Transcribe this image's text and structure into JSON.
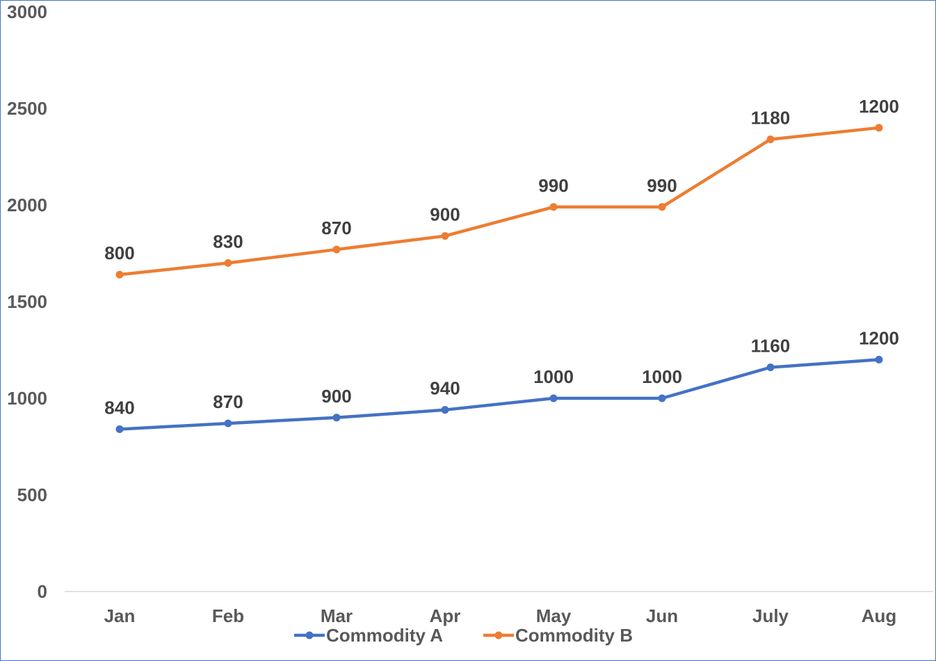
{
  "chart_data": {
    "type": "line",
    "stacked": true,
    "title": "",
    "xlabel": "",
    "ylabel": "",
    "categories": [
      "Jan",
      "Feb",
      "Mar",
      "Apr",
      "May",
      "Jun",
      "July",
      "Aug"
    ],
    "yticks": [
      "0",
      "500",
      "1000",
      "1500",
      "2000",
      "2500",
      "3000"
    ],
    "ylim": [
      0,
      3000
    ],
    "grid": false,
    "legend_position": "bottom",
    "series": [
      {
        "name": "Commodity A",
        "color": "#4472C4",
        "values": [
          840,
          870,
          900,
          940,
          1000,
          1000,
          1160,
          1200
        ],
        "labels": [
          "840",
          "870",
          "900",
          "940",
          "1000",
          "1000",
          "1160",
          "1200"
        ]
      },
      {
        "name": "Commodity B",
        "color": "#ED7D31",
        "values": [
          800,
          830,
          870,
          900,
          990,
          990,
          1180,
          1200
        ],
        "labels": [
          "800",
          "830",
          "870",
          "900",
          "990",
          "990",
          "1180",
          "1200"
        ]
      }
    ]
  }
}
